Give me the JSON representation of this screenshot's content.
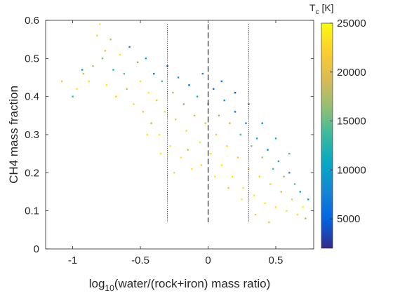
{
  "chart_data": {
    "type": "scatter",
    "xlabel_base": "log",
    "xlabel_sub": "10",
    "xlabel_rest": "(water/(rock+iron) mass ratio)",
    "ylabel": "CH4 mass fraction",
    "xlim": [
      -1.2,
      0.78
    ],
    "ylim": [
      0,
      0.6
    ],
    "xticks": [
      -1,
      -0.5,
      0,
      0.5
    ],
    "xtick_labels": [
      "-1",
      "-0.5",
      "0",
      "0.5"
    ],
    "yticks": [
      0,
      0.1,
      0.2,
      0.3,
      0.4,
      0.5,
      0.6
    ],
    "ytick_labels": [
      "0",
      "0.1",
      "0.2",
      "0.3",
      "0.4",
      "0.5",
      "0.6"
    ],
    "grid": false,
    "reference_lines": [
      {
        "x": -0.3,
        "style": "dotted",
        "y_range": [
          0.07,
          0.59
        ]
      },
      {
        "x": 0.0,
        "style": "dashed",
        "y_range": [
          0.07,
          0.59
        ]
      },
      {
        "x": 0.3,
        "style": "dotted",
        "y_range": [
          0.07,
          0.59
        ]
      }
    ],
    "colorbar": {
      "label_main": "T",
      "label_sub": "c",
      "label_unit": " [K]",
      "range": [
        2000,
        25000
      ],
      "ticks": [
        5000,
        10000,
        15000,
        20000,
        25000
      ],
      "tick_labels": [
        "5000",
        "10000",
        "15000",
        "20000",
        "25000"
      ],
      "colormap": "parula",
      "colors": [
        "#352a87",
        "#0363e1",
        "#1485d4",
        "#06a7c6",
        "#38b99e",
        "#92bf73",
        "#d9ba56",
        "#fcce2e",
        "#f9fb0e"
      ]
    },
    "series": [
      {
        "points": [
          [
            -0.93,
            0.47,
            9000
          ],
          [
            -0.92,
            0.46,
            20000
          ],
          [
            -0.88,
            0.44,
            24000
          ],
          [
            -0.85,
            0.48,
            18000
          ],
          [
            -0.82,
            0.56,
            23000
          ],
          [
            -0.8,
            0.59,
            24000
          ],
          [
            -0.78,
            0.5,
            16000
          ],
          [
            -0.76,
            0.52,
            21000
          ],
          [
            -0.75,
            0.43,
            24000
          ],
          [
            -0.72,
            0.55,
            19000
          ],
          [
            -0.7,
            0.47,
            12000
          ],
          [
            -0.68,
            0.4,
            22000
          ],
          [
            -0.65,
            0.51,
            24000
          ],
          [
            -0.62,
            0.46,
            15000
          ],
          [
            -0.6,
            0.42,
            20000
          ],
          [
            -0.58,
            0.53,
            8000
          ],
          [
            -0.55,
            0.38,
            23000
          ],
          [
            -0.52,
            0.49,
            17000
          ],
          [
            -0.5,
            0.44,
            24000
          ],
          [
            -0.48,
            0.36,
            21000
          ],
          [
            -0.46,
            0.5,
            11000
          ],
          [
            -0.44,
            0.41,
            24000
          ],
          [
            -0.42,
            0.33,
            19000
          ],
          [
            -0.4,
            0.46,
            7000
          ],
          [
            -0.38,
            0.39,
            22000
          ],
          [
            -0.36,
            0.3,
            24000
          ],
          [
            -0.34,
            0.44,
            14000
          ],
          [
            -0.32,
            0.36,
            23000
          ],
          [
            -0.3,
            0.48,
            6000
          ],
          [
            -0.28,
            0.27,
            24000
          ],
          [
            -0.26,
            0.41,
            18000
          ],
          [
            -0.24,
            0.34,
            22000
          ],
          [
            -0.22,
            0.45,
            9000
          ],
          [
            -0.2,
            0.24,
            24000
          ],
          [
            -0.18,
            0.38,
            16000
          ],
          [
            -0.16,
            0.31,
            23000
          ],
          [
            -0.14,
            0.43,
            5000
          ],
          [
            -0.12,
            0.21,
            24000
          ],
          [
            -0.1,
            0.35,
            20000
          ],
          [
            -0.08,
            0.4,
            12000
          ],
          [
            -0.06,
            0.28,
            24000
          ],
          [
            -0.04,
            0.46,
            8000
          ],
          [
            -0.02,
            0.33,
            21000
          ],
          [
            0.0,
            0.38,
            15000
          ],
          [
            0.02,
            0.25,
            24000
          ],
          [
            0.04,
            0.42,
            6000
          ],
          [
            0.06,
            0.3,
            22000
          ],
          [
            0.08,
            0.35,
            17000
          ],
          [
            0.1,
            0.22,
            24000
          ],
          [
            0.12,
            0.39,
            10000
          ],
          [
            0.14,
            0.27,
            23000
          ],
          [
            0.16,
            0.33,
            19000
          ],
          [
            0.18,
            0.19,
            24000
          ],
          [
            0.2,
            0.36,
            7000
          ],
          [
            0.22,
            0.24,
            22000
          ],
          [
            0.24,
            0.3,
            13000
          ],
          [
            0.26,
            0.16,
            24000
          ],
          [
            0.28,
            0.33,
            9000
          ],
          [
            0.3,
            0.21,
            21000
          ],
          [
            0.32,
            0.27,
            16000
          ],
          [
            0.34,
            0.14,
            24000
          ],
          [
            0.36,
            0.29,
            11000
          ],
          [
            0.38,
            0.19,
            23000
          ],
          [
            0.4,
            0.24,
            18000
          ],
          [
            0.42,
            0.12,
            24000
          ],
          [
            0.44,
            0.26,
            8000
          ],
          [
            0.46,
            0.17,
            22000
          ],
          [
            0.48,
            0.21,
            14000
          ],
          [
            0.5,
            0.11,
            24000
          ],
          [
            0.52,
            0.23,
            12000
          ],
          [
            0.54,
            0.15,
            20000
          ],
          [
            0.56,
            0.19,
            17000
          ],
          [
            0.58,
            0.1,
            24000
          ],
          [
            0.6,
            0.2,
            9000
          ],
          [
            0.62,
            0.13,
            22000
          ],
          [
            0.64,
            0.17,
            15000
          ],
          [
            0.66,
            0.09,
            23000
          ],
          [
            0.68,
            0.15,
            11000
          ],
          [
            0.7,
            0.11,
            24000
          ],
          [
            0.72,
            0.08,
            18000
          ],
          [
            0.74,
            0.13,
            10000
          ],
          [
            -1.08,
            0.44,
            22000
          ],
          [
            -1.0,
            0.4,
            14000
          ],
          [
            -0.97,
            0.42,
            24000
          ],
          [
            -0.15,
            0.26,
            19000
          ],
          [
            -0.05,
            0.22,
            23000
          ],
          [
            0.05,
            0.19,
            24000
          ],
          [
            0.15,
            0.16,
            21000
          ],
          [
            0.25,
            0.13,
            24000
          ],
          [
            0.35,
            0.09,
            22000
          ],
          [
            0.45,
            0.07,
            20000
          ],
          [
            -0.35,
            0.25,
            24000
          ],
          [
            -0.25,
            0.2,
            23000
          ],
          [
            -0.45,
            0.3,
            24000
          ],
          [
            0.1,
            0.44,
            6000
          ],
          [
            0.2,
            0.41,
            5000
          ],
          [
            0.3,
            0.38,
            7000
          ],
          [
            0.4,
            0.33,
            9000
          ],
          [
            0.5,
            0.29,
            12000
          ],
          [
            0.6,
            0.25,
            14000
          ]
        ]
      }
    ]
  }
}
